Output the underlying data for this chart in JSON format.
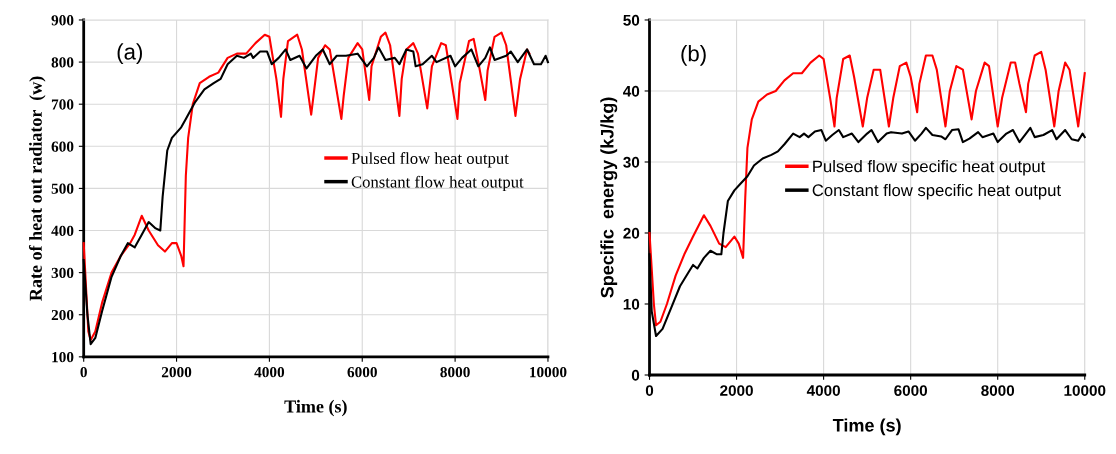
{
  "chart_data": [
    {
      "type": "line",
      "xlabel": "Time (s)",
      "ylabel": "Rate of heat out radiator  (w)",
      "annotations": [
        "(a)"
      ],
      "xlim": [
        0,
        10000
      ],
      "xticks": [
        0,
        2000,
        4000,
        6000,
        8000,
        10000
      ],
      "ylim": [
        100,
        900
      ],
      "yticks": [
        100,
        200,
        300,
        400,
        500,
        600,
        700,
        800,
        900
      ],
      "grid": true,
      "legend": "right",
      "line_style": "solid",
      "marker": "none",
      "series": [
        {
          "name": "Pulsed flow heat output",
          "color": "#ff0000",
          "x": [
            0,
            100,
            150,
            250,
            400,
            600,
            800,
            1000,
            1100,
            1250,
            1400,
            1600,
            1750,
            1900,
            2000,
            2100,
            2150,
            2200,
            2250,
            2350,
            2500,
            2700,
            2900,
            3100,
            3300,
            3500,
            3700,
            3900,
            4000,
            4150,
            4250,
            4300,
            4400,
            4600,
            4700,
            4900,
            4950,
            5050,
            5200,
            5300,
            5550,
            5600,
            5700,
            5900,
            6000,
            6150,
            6200,
            6400,
            6500,
            6600,
            6800,
            6850,
            6950,
            7100,
            7200,
            7400,
            7500,
            7700,
            7800,
            8050,
            8100,
            8300,
            8400,
            8500,
            8650,
            8700,
            8850,
            9000,
            9100,
            9300,
            9400,
            9550,
            9600
          ],
          "values": [
            370,
            160,
            140,
            160,
            230,
            300,
            340,
            370,
            390,
            435,
            400,
            365,
            350,
            370,
            370,
            340,
            315,
            530,
            620,
            700,
            750,
            765,
            775,
            810,
            820,
            820,
            845,
            865,
            860,
            760,
            670,
            760,
            850,
            865,
            830,
            675,
            720,
            810,
            840,
            830,
            665,
            720,
            810,
            845,
            830,
            710,
            790,
            860,
            870,
            840,
            672,
            760,
            830,
            845,
            820,
            690,
            790,
            845,
            840,
            665,
            750,
            850,
            855,
            800,
            710,
            780,
            860,
            870,
            840,
            672,
            760,
            830,
            820
          ]
        },
        {
          "name": "Constant flow heat output",
          "color": "#000000",
          "x": [
            0,
            80,
            150,
            250,
            400,
            600,
            800,
            950,
            1100,
            1250,
            1400,
            1550,
            1650,
            1700,
            1800,
            1900,
            2100,
            2200,
            2400,
            2600,
            2800,
            2950,
            3100,
            3300,
            3450,
            3600,
            3650,
            3800,
            3950,
            4050,
            4200,
            4350,
            4450,
            4650,
            4800,
            5000,
            5150,
            5300,
            5450,
            5650,
            5900,
            6100,
            6250,
            6350,
            6500,
            6700,
            6800,
            6950,
            7100,
            7150,
            7300,
            7500,
            7600,
            7900,
            8000,
            8150,
            8350,
            8500,
            8650,
            8750,
            8850,
            9100,
            9200,
            9350,
            9550,
            9700,
            9850,
            9950,
            10000
          ],
          "values": [
            330,
            200,
            130,
            145,
            210,
            290,
            340,
            370,
            360,
            390,
            420,
            405,
            400,
            480,
            590,
            620,
            645,
            665,
            705,
            735,
            750,
            760,
            795,
            815,
            810,
            820,
            810,
            825,
            825,
            795,
            810,
            830,
            805,
            815,
            785,
            815,
            830,
            795,
            815,
            815,
            820,
            790,
            810,
            835,
            805,
            810,
            795,
            830,
            825,
            790,
            795,
            815,
            800,
            815,
            790,
            810,
            830,
            790,
            810,
            835,
            805,
            815,
            825,
            800,
            830,
            795,
            795,
            815,
            800
          ]
        }
      ]
    },
    {
      "type": "line",
      "xlabel": "Time (s)",
      "ylabel": "Specific  energy (kJ/kg)",
      "annotations": [
        "(b)"
      ],
      "xlim": [
        0,
        10000
      ],
      "xticks": [
        0,
        2000,
        4000,
        6000,
        8000,
        10000
      ],
      "ylim": [
        0,
        50
      ],
      "yticks": [
        0,
        10,
        20,
        30,
        40,
        50
      ],
      "grid": true,
      "legend": "right",
      "line_style": "solid",
      "marker": "none",
      "series": [
        {
          "name": "Pulsed flow specific heat output",
          "color": "#ff0000",
          "x": [
            0,
            100,
            150,
            250,
            400,
            600,
            800,
            1000,
            1250,
            1400,
            1600,
            1750,
            1950,
            2050,
            2150,
            2200,
            2250,
            2350,
            2500,
            2700,
            2900,
            3100,
            3300,
            3500,
            3700,
            3900,
            4000,
            4150,
            4250,
            4300,
            4450,
            4600,
            4700,
            4900,
            5000,
            5150,
            5300,
            5500,
            5600,
            5750,
            5900,
            6000,
            6150,
            6200,
            6350,
            6500,
            6600,
            6800,
            6900,
            7050,
            7200,
            7400,
            7500,
            7700,
            7800,
            8000,
            8100,
            8300,
            8400,
            8500,
            8650,
            8700,
            8850,
            9000,
            9100,
            9300,
            9400,
            9550,
            9650,
            9850,
            9950,
            10000
          ],
          "values": [
            20,
            10,
            7,
            7.5,
            10,
            14,
            17,
            19.5,
            22.5,
            21,
            18.5,
            18,
            19.5,
            18.5,
            16.5,
            25,
            32,
            36,
            38.5,
            39.5,
            40,
            41.5,
            42.5,
            42.5,
            44,
            45,
            44.5,
            39,
            35,
            39,
            44.5,
            45,
            42,
            35,
            39,
            43,
            43,
            35,
            39,
            43.5,
            44,
            42,
            37,
            41,
            45,
            45,
            43,
            35,
            40,
            43.5,
            43,
            36,
            40,
            44,
            43.5,
            35,
            39,
            44,
            44,
            41,
            37,
            41,
            45,
            45.5,
            43,
            35,
            40,
            44,
            43,
            35,
            40,
            42.5
          ]
        },
        {
          "name": "Constant flow specific heat output",
          "color": "#000000",
          "x": [
            0,
            50,
            150,
            300,
            500,
            700,
            900,
            1000,
            1100,
            1250,
            1400,
            1550,
            1650,
            1700,
            1800,
            1950,
            2100,
            2250,
            2400,
            2600,
            2800,
            2950,
            3100,
            3300,
            3450,
            3550,
            3650,
            3800,
            3950,
            4050,
            4200,
            4350,
            4450,
            4650,
            4800,
            5000,
            5100,
            5250,
            5450,
            5550,
            5800,
            5950,
            6100,
            6250,
            6350,
            6500,
            6700,
            6800,
            6950,
            7100,
            7200,
            7350,
            7550,
            7650,
            7900,
            8000,
            8200,
            8350,
            8500,
            8650,
            8750,
            8850,
            9050,
            9250,
            9350,
            9550,
            9700,
            9850,
            9950,
            10000
          ],
          "values": [
            17,
            9,
            5.5,
            6.5,
            9.5,
            12.5,
            14.5,
            15.5,
            15,
            16.5,
            17.5,
            17,
            17,
            20,
            24.5,
            26,
            27,
            28,
            29.5,
            30.5,
            31,
            31.5,
            32.5,
            34,
            33.5,
            34,
            33.5,
            34.3,
            34.5,
            33,
            33.8,
            34.5,
            33.5,
            34,
            32.8,
            34,
            34.5,
            32.8,
            34,
            34.2,
            34,
            34.3,
            33,
            34,
            34.8,
            33.8,
            33.6,
            33.2,
            34.5,
            34.6,
            32.8,
            33.3,
            34.2,
            33.5,
            34,
            32.8,
            34,
            34.5,
            32.8,
            34,
            34.8,
            33.5,
            33.8,
            34.5,
            33.2,
            34.5,
            33.2,
            33,
            34,
            33.5
          ]
        }
      ]
    }
  ]
}
